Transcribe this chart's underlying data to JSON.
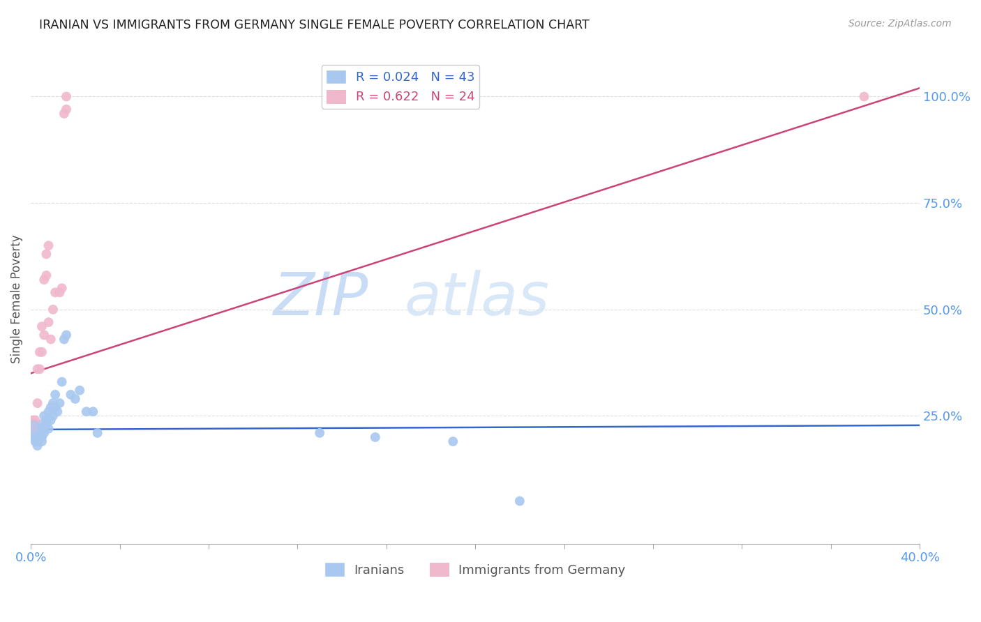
{
  "title": "IRANIAN VS IMMIGRANTS FROM GERMANY SINGLE FEMALE POVERTY CORRELATION CHART",
  "source": "Source: ZipAtlas.com",
  "ylabel": "Single Female Poverty",
  "ytick_labels": [
    "100.0%",
    "75.0%",
    "50.0%",
    "25.0%"
  ],
  "ytick_values": [
    1.0,
    0.75,
    0.5,
    0.25
  ],
  "xlim": [
    0.0,
    0.4
  ],
  "ylim": [
    -0.05,
    1.1
  ],
  "iranians_x": [
    0.001,
    0.001,
    0.002,
    0.002,
    0.002,
    0.003,
    0.003,
    0.003,
    0.003,
    0.004,
    0.004,
    0.004,
    0.005,
    0.005,
    0.005,
    0.006,
    0.006,
    0.006,
    0.007,
    0.007,
    0.008,
    0.008,
    0.009,
    0.009,
    0.01,
    0.01,
    0.011,
    0.011,
    0.012,
    0.013,
    0.014,
    0.015,
    0.016,
    0.018,
    0.02,
    0.022,
    0.025,
    0.028,
    0.03,
    0.13,
    0.155,
    0.19,
    0.22
  ],
  "iranians_y": [
    0.21,
    0.2,
    0.22,
    0.2,
    0.19,
    0.22,
    0.21,
    0.19,
    0.18,
    0.23,
    0.21,
    0.2,
    0.22,
    0.2,
    0.19,
    0.25,
    0.22,
    0.21,
    0.24,
    0.23,
    0.26,
    0.22,
    0.27,
    0.24,
    0.28,
    0.25,
    0.3,
    0.27,
    0.26,
    0.28,
    0.33,
    0.43,
    0.44,
    0.3,
    0.29,
    0.31,
    0.26,
    0.26,
    0.21,
    0.21,
    0.2,
    0.19,
    0.05
  ],
  "germany_x": [
    0.001,
    0.001,
    0.002,
    0.003,
    0.003,
    0.004,
    0.004,
    0.005,
    0.005,
    0.006,
    0.006,
    0.007,
    0.007,
    0.008,
    0.008,
    0.009,
    0.01,
    0.011,
    0.013,
    0.014,
    0.015,
    0.016,
    0.016,
    0.375
  ],
  "germany_y": [
    0.22,
    0.24,
    0.24,
    0.28,
    0.36,
    0.36,
    0.4,
    0.4,
    0.46,
    0.44,
    0.57,
    0.58,
    0.63,
    0.65,
    0.47,
    0.43,
    0.5,
    0.54,
    0.54,
    0.55,
    0.96,
    0.97,
    1.0,
    1.0
  ],
  "iran_line": {
    "x0": 0.0,
    "y0": 0.218,
    "x1": 0.4,
    "y1": 0.228
  },
  "ger_line": {
    "x0": 0.0,
    "y0": 0.35,
    "x1": 0.4,
    "y1": 1.02
  },
  "scatter_size": 100,
  "scatter_size_large": 300,
  "iranian_color": "#a8c8f0",
  "germany_color": "#f0b8cc",
  "iranian_line_color": "#3366cc",
  "germany_line_color": "#cc4477",
  "background_color": "#ffffff",
  "grid_color": "#dddddd",
  "title_color": "#222222",
  "axis_label_color": "#5599ee",
  "source_color": "#999999"
}
